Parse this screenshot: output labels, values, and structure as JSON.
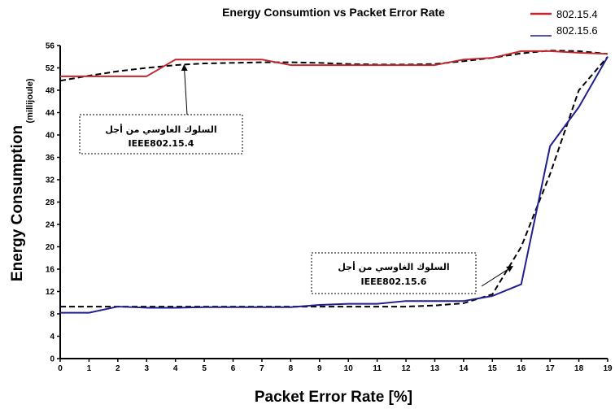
{
  "chart_data": {
    "type": "line",
    "title": "Energy Consumtion vs Packet Error Rate",
    "xlabel": "Packet Error Rate [%]",
    "ylabel": "Energy Consumption",
    "ylabel_unit": "(millijoule)",
    "xlim": [
      0,
      19
    ],
    "ylim": [
      0,
      56
    ],
    "x": [
      0,
      1,
      2,
      3,
      4,
      5,
      6,
      7,
      8,
      9,
      10,
      11,
      12,
      13,
      14,
      15,
      16,
      17,
      18,
      19
    ],
    "x_ticks": [
      0,
      1,
      2,
      3,
      4,
      5,
      6,
      7,
      8,
      9,
      10,
      11,
      12,
      13,
      14,
      15,
      16,
      17,
      18,
      19
    ],
    "y_ticks": [
      0,
      4,
      8,
      12,
      16,
      20,
      24,
      28,
      32,
      36,
      40,
      44,
      48,
      52,
      56
    ],
    "grid": false,
    "legend_position": "top-right",
    "series": [
      {
        "name": "802.15.4",
        "style": "solid",
        "color": "#c1272d",
        "values": [
          50.5,
          50.5,
          50.5,
          50.5,
          53.5,
          53.5,
          53.5,
          53.5,
          52.5,
          52.5,
          52.5,
          52.5,
          52.5,
          52.5,
          53.5,
          53.8,
          55,
          55,
          54.7,
          54.5
        ]
      },
      {
        "name": "802.15.6",
        "style": "solid",
        "color": "#1f1f8f",
        "values": [
          8.2,
          8.2,
          9.3,
          9.1,
          9.1,
          9.2,
          9.2,
          9.2,
          9.2,
          9.6,
          9.8,
          9.8,
          10.3,
          10.3,
          10.3,
          11.2,
          13.3,
          38,
          45,
          54
        ]
      }
    ],
    "fits": [
      {
        "style": "dashed",
        "color": "#000000",
        "x": [
          0,
          1,
          2,
          3,
          4,
          5,
          6,
          7,
          8,
          9,
          10,
          11,
          12,
          13,
          14,
          15,
          16,
          17,
          18,
          19
        ],
        "values": [
          49.7,
          50.6,
          51.4,
          52,
          52.5,
          52.8,
          52.9,
          53,
          53,
          52.9,
          52.7,
          52.6,
          52.6,
          52.7,
          53.2,
          53.8,
          54.6,
          55.1,
          55,
          54.5
        ]
      },
      {
        "style": "dashed",
        "color": "#000000",
        "x": [
          0,
          1,
          2,
          3,
          4,
          5,
          6,
          7,
          8,
          9,
          10,
          11,
          12,
          13,
          14,
          15,
          16,
          17,
          18,
          19
        ],
        "values": [
          9.3,
          9.3,
          9.3,
          9.3,
          9.3,
          9.3,
          9.3,
          9.3,
          9.3,
          9.3,
          9.3,
          9.3,
          9.3,
          9.5,
          9.9,
          11.5,
          20,
          33,
          48,
          54
        ]
      }
    ],
    "annotations": [
      {
        "line1": "السلوك الغاوسي من أجل",
        "line2": "IEEE802.15.4",
        "arrow_to": [
          4.3,
          52.5
        ]
      },
      {
        "line1": "السلوك الغاوسي من أجل",
        "line2": "IEEE802.15.6",
        "arrow_to": [
          15.7,
          16.5
        ]
      }
    ]
  }
}
